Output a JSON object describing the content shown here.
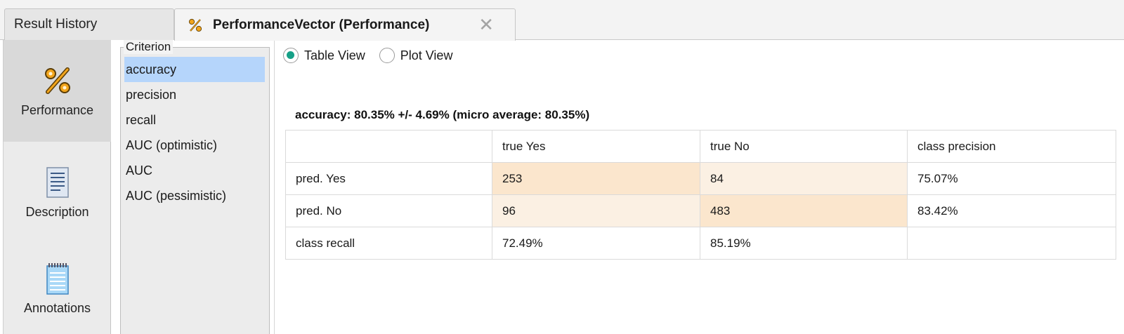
{
  "tabs": [
    {
      "label": "Result History",
      "active": false
    },
    {
      "label": "PerformanceVector (Performance)",
      "active": true,
      "icon": "percent-icon"
    }
  ],
  "close_glyph": "✕",
  "leftnav": {
    "items": [
      {
        "label": "Performance",
        "icon": "percent-icon",
        "selected": true
      },
      {
        "label": "Description",
        "icon": "document-icon",
        "selected": false
      },
      {
        "label": "Annotations",
        "icon": "notepad-icon",
        "selected": false
      }
    ]
  },
  "criterion": {
    "legend": "Criterion",
    "items": [
      "accuracy",
      "precision",
      "recall",
      "AUC (optimistic)",
      "AUC",
      "AUC (pessimistic)"
    ],
    "selected": "accuracy"
  },
  "view": {
    "options": [
      "Table View",
      "Plot View"
    ],
    "selected": "Table View"
  },
  "summary": "accuracy: 80.35% +/- 4.69% (micro average: 80.35%)",
  "matrix": {
    "header": [
      "",
      "true Yes",
      "true No",
      "class precision"
    ],
    "rows": [
      [
        "pred. Yes",
        "253",
        "84",
        "75.07%"
      ],
      [
        "pred. No",
        "96",
        "483",
        "83.42%"
      ],
      [
        "class recall",
        "72.49%",
        "85.19%",
        ""
      ]
    ]
  },
  "colors": {
    "accent_radio": "#16a087",
    "selection": "#b5d5fb",
    "cell_strong": "#fbe6cd",
    "cell_weak": "#fbf0e3",
    "icon_orange": "#f2a51c"
  }
}
